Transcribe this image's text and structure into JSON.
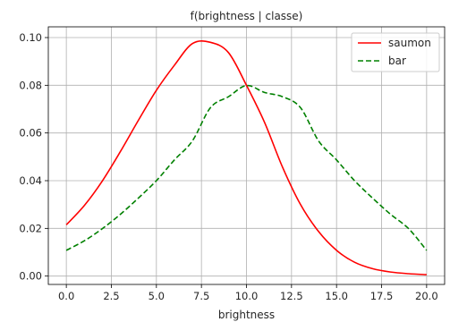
{
  "chart_data": {
    "type": "line",
    "title": "f(brightness | classe)",
    "xlabel": "brightness",
    "ylabel": "",
    "xlim": [
      -1,
      21
    ],
    "ylim": [
      -0.0035,
      0.1045
    ],
    "xticks": [
      0.0,
      2.5,
      5.0,
      7.5,
      10.0,
      12.5,
      15.0,
      17.5,
      20.0
    ],
    "xtick_labels": [
      "0.0",
      "2.5",
      "5.0",
      "7.5",
      "10.0",
      "12.5",
      "15.0",
      "17.5",
      "20.0"
    ],
    "yticks": [
      0.0,
      0.02,
      0.04,
      0.06,
      0.08,
      0.1
    ],
    "ytick_labels": [
      "0.00",
      "0.02",
      "0.04",
      "0.06",
      "0.08",
      "0.10"
    ],
    "grid": true,
    "legend": {
      "placement": "top-right"
    },
    "series": [
      {
        "name": "saumon",
        "color": "#ff0000",
        "style": "solid",
        "x": [
          0,
          1,
          2,
          3,
          4,
          5,
          6,
          7,
          8,
          9,
          10,
          11,
          12,
          13,
          14,
          15,
          16,
          17,
          18,
          19,
          20
        ],
        "y": [
          0.0215,
          0.0296,
          0.0399,
          0.0522,
          0.0653,
          0.0779,
          0.0884,
          0.0975,
          0.098,
          0.0937,
          0.08,
          0.0645,
          0.0457,
          0.03,
          0.0187,
          0.0108,
          0.0058,
          0.0031,
          0.0017,
          0.001,
          0.0006
        ]
      },
      {
        "name": "bar",
        "color": "#008000",
        "style": "dashed",
        "x": [
          0,
          1,
          2,
          3,
          4,
          5,
          6,
          7,
          8,
          9,
          10,
          11,
          12,
          13,
          14,
          15,
          16,
          17,
          18,
          19,
          20
        ],
        "y": [
          0.0108,
          0.0148,
          0.0199,
          0.0259,
          0.0327,
          0.04,
          0.0487,
          0.0567,
          0.0706,
          0.0752,
          0.0799,
          0.077,
          0.0752,
          0.0706,
          0.0567,
          0.0487,
          0.04,
          0.0327,
          0.0259,
          0.0199,
          0.0108
        ]
      }
    ]
  }
}
